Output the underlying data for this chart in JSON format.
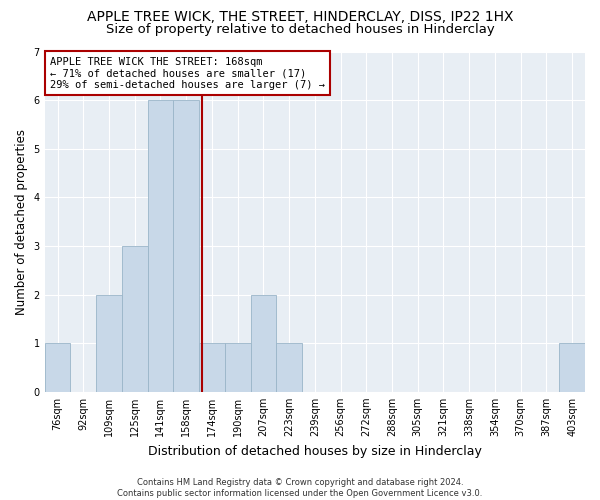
{
  "title": "APPLE TREE WICK, THE STREET, HINDERCLAY, DISS, IP22 1HX",
  "subtitle": "Size of property relative to detached houses in Hinderclay",
  "xlabel": "Distribution of detached houses by size in Hinderclay",
  "ylabel": "Number of detached properties",
  "bin_labels": [
    "76sqm",
    "92sqm",
    "109sqm",
    "125sqm",
    "141sqm",
    "158sqm",
    "174sqm",
    "190sqm",
    "207sqm",
    "223sqm",
    "239sqm",
    "256sqm",
    "272sqm",
    "288sqm",
    "305sqm",
    "321sqm",
    "338sqm",
    "354sqm",
    "370sqm",
    "387sqm",
    "403sqm"
  ],
  "counts": [
    1,
    0,
    2,
    3,
    6,
    6,
    1,
    1,
    2,
    1,
    0,
    0,
    0,
    0,
    0,
    0,
    0,
    0,
    0,
    0,
    1
  ],
  "bar_color": "#c8d8e8",
  "bar_edge_color": "#9ab5c8",
  "vline_color": "#aa0000",
  "annotation_text": "APPLE TREE WICK THE STREET: 168sqm\n← 71% of detached houses are smaller (17)\n29% of semi-detached houses are larger (7) →",
  "annotation_box_color": "#ffffff",
  "annotation_box_edge": "#aa0000",
  "ylim_max": 7,
  "yticks": [
    0,
    1,
    2,
    3,
    4,
    5,
    6,
    7
  ],
  "bg_color": "#e8eef4",
  "grid_color": "#ffffff",
  "footer": "Contains HM Land Registry data © Crown copyright and database right 2024.\nContains public sector information licensed under the Open Government Licence v3.0.",
  "title_fontsize": 10,
  "subtitle_fontsize": 9.5,
  "xlabel_fontsize": 9,
  "ylabel_fontsize": 8.5,
  "tick_fontsize": 7,
  "annotation_fontsize": 7.5,
  "footer_fontsize": 6
}
